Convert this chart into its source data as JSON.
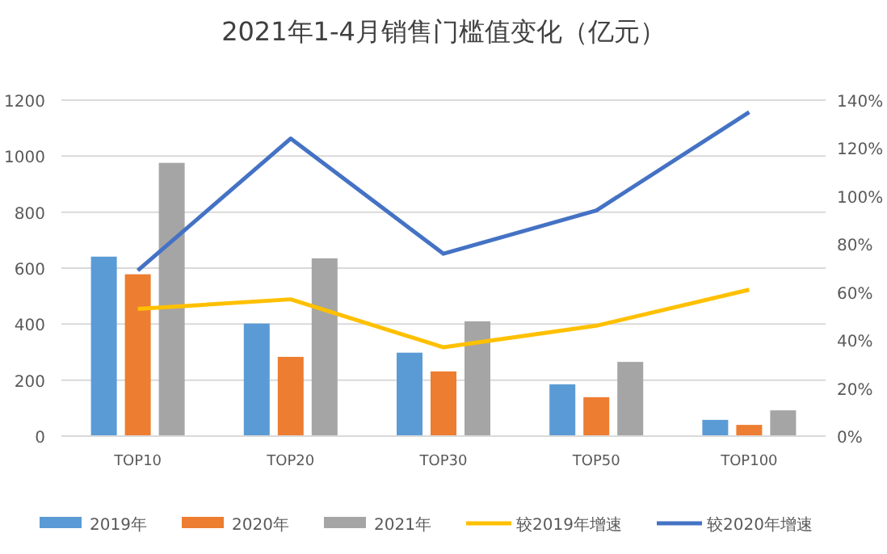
{
  "chart_data": {
    "type": "bar",
    "title": "2021年1-4月销售门槛值变化（亿元）",
    "categories": [
      "TOP10",
      "TOP20",
      "TOP30",
      "TOP50",
      "TOP100"
    ],
    "series": [
      {
        "name": "2019年",
        "color": "#5b9bd5",
        "values": [
          641,
          402,
          298,
          185,
          58
        ]
      },
      {
        "name": "2020年",
        "color": "#ed7d31",
        "values": [
          578,
          283,
          231,
          139,
          40
        ]
      },
      {
        "name": "2021年",
        "color": "#a5a5a5",
        "values": [
          976,
          635,
          410,
          265,
          92
        ]
      },
      {
        "name": "较2019年增速",
        "type": "line",
        "axis": "y2",
        "color": "#ffc000",
        "values": [
          53,
          57,
          37,
          46,
          61
        ]
      },
      {
        "name": "较2020年增速",
        "type": "line",
        "axis": "y2",
        "color": "#4472c4",
        "values": [
          69,
          124,
          76,
          94,
          135
        ]
      }
    ],
    "ylim": [
      0,
      1200
    ],
    "yticks": [
      0,
      200,
      400,
      600,
      800,
      1000,
      1200
    ],
    "y2lim": [
      0,
      140
    ],
    "y2ticks": [
      {
        "value": 0,
        "label": "0%"
      },
      {
        "value": 20,
        "label": "20%"
      },
      {
        "value": 40,
        "label": "40%"
      },
      {
        "value": 60,
        "label": "60%"
      },
      {
        "value": 80,
        "label": "80%"
      },
      {
        "value": 100,
        "label": "100%"
      },
      {
        "value": 120,
        "label": "120%"
      },
      {
        "value": 140,
        "label": "140%"
      }
    ],
    "grid": "y",
    "legend": "bottom"
  }
}
